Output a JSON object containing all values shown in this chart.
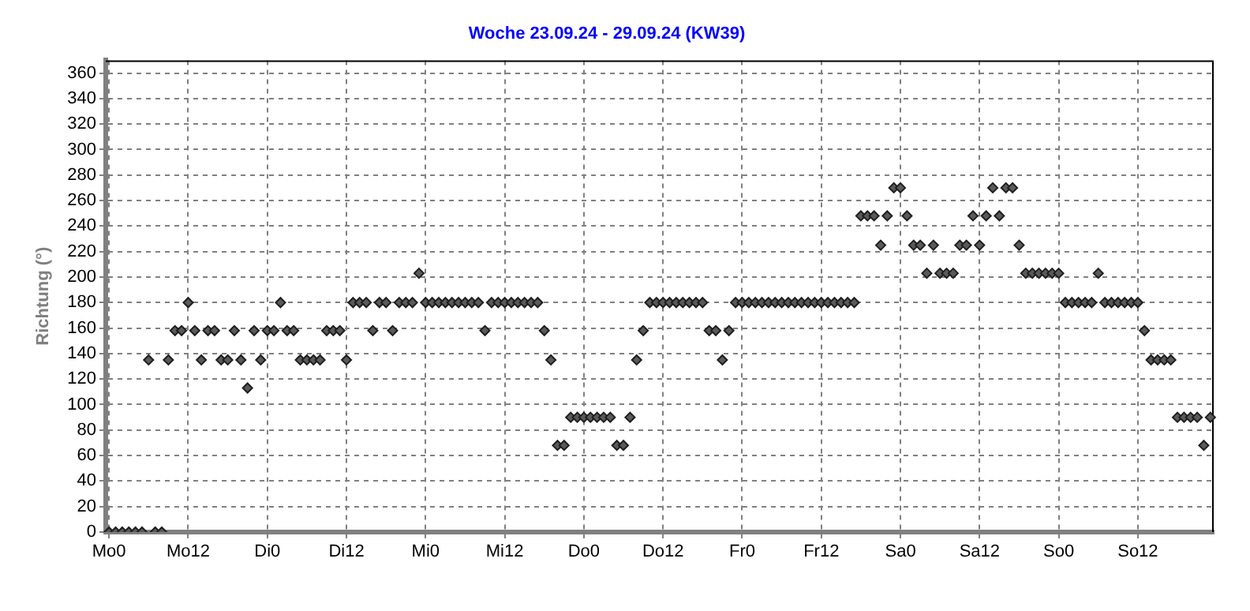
{
  "chart_data": {
    "type": "scatter",
    "title": "Woche 23.09.24 - 29.09.24 (KW39)",
    "ylabel": "Richtung (°)",
    "categories": [
      "Mo0",
      null,
      null,
      null,
      null,
      null,
      null,
      null,
      null,
      null,
      null,
      null,
      "Mo12",
      null,
      null,
      null,
      null,
      null,
      null,
      null,
      null,
      null,
      null,
      null,
      "Di0",
      null,
      null,
      null,
      null,
      null,
      null,
      null,
      null,
      null,
      null,
      null,
      "Di12",
      null,
      null,
      null,
      null,
      null,
      null,
      null,
      null,
      null,
      null,
      null,
      "Mi0",
      null,
      null,
      null,
      null,
      null,
      null,
      null,
      null,
      null,
      null,
      null,
      "Mi12",
      null,
      null,
      null,
      null,
      null,
      null,
      null,
      null,
      null,
      null,
      null,
      "Do0",
      null,
      null,
      null,
      null,
      null,
      null,
      null,
      null,
      null,
      null,
      null,
      "Do12",
      null,
      null,
      null,
      null,
      null,
      null,
      null,
      null,
      null,
      null,
      null,
      "Fr0",
      null,
      null,
      null,
      null,
      null,
      null,
      null,
      null,
      null,
      null,
      null,
      "Fr12",
      null,
      null,
      null,
      null,
      null,
      null,
      null,
      null,
      null,
      null,
      null,
      "Sa0",
      null,
      null,
      null,
      null,
      null,
      null,
      null,
      null,
      null,
      null,
      null,
      "Sa12",
      null,
      null,
      null,
      null,
      null,
      null,
      null,
      null,
      null,
      null,
      null,
      "So0",
      null,
      null,
      null,
      null,
      null,
      null,
      null,
      null,
      null,
      null,
      null,
      "So12",
      null,
      null,
      null,
      null,
      null,
      null,
      null,
      null,
      null,
      null,
      null
    ],
    "series": [
      {
        "color": "#5a5a5a",
        "values": [
          0,
          0,
          0,
          0,
          0,
          0,
          135,
          0,
          0,
          135,
          158,
          158,
          180,
          158,
          135,
          158,
          158,
          135,
          135,
          158,
          135,
          113,
          158,
          135,
          158,
          158,
          180,
          158,
          158,
          135,
          135,
          135,
          135,
          158,
          158,
          158,
          135,
          180,
          180,
          180,
          158,
          180,
          180,
          158,
          180,
          180,
          180,
          203,
          180,
          180,
          180,
          180,
          180,
          180,
          180,
          180,
          180,
          158,
          180,
          180,
          180,
          180,
          180,
          180,
          180,
          180,
          158,
          135,
          68,
          68,
          90,
          90,
          90,
          90,
          90,
          90,
          90,
          68,
          68,
          90,
          135,
          158,
          180,
          180,
          180,
          180,
          180,
          180,
          180,
          180,
          180,
          158,
          158,
          135,
          158,
          180,
          180,
          180,
          180,
          180,
          180,
          180,
          180,
          180,
          180,
          180,
          180,
          180,
          180,
          180,
          180,
          180,
          180,
          180,
          248,
          248,
          248,
          225,
          248,
          270,
          270,
          248,
          225,
          225,
          203,
          225,
          203,
          203,
          203,
          225,
          225,
          248,
          225,
          248,
          270,
          248,
          270,
          270,
          225,
          203,
          203,
          203,
          203,
          203,
          203,
          180,
          180,
          180,
          180,
          180,
          203,
          180,
          180,
          180,
          180,
          180,
          180,
          158,
          135,
          135,
          135,
          135,
          90,
          90,
          90,
          90,
          68,
          90
        ]
      }
    ],
    "ylim": [
      0,
      370
    ],
    "yticks": [
      0,
      20,
      40,
      60,
      80,
      100,
      120,
      140,
      160,
      180,
      200,
      220,
      240,
      260,
      280,
      300,
      320,
      340,
      360
    ],
    "grid": true,
    "legend": false,
    "marker": "diamond"
  }
}
